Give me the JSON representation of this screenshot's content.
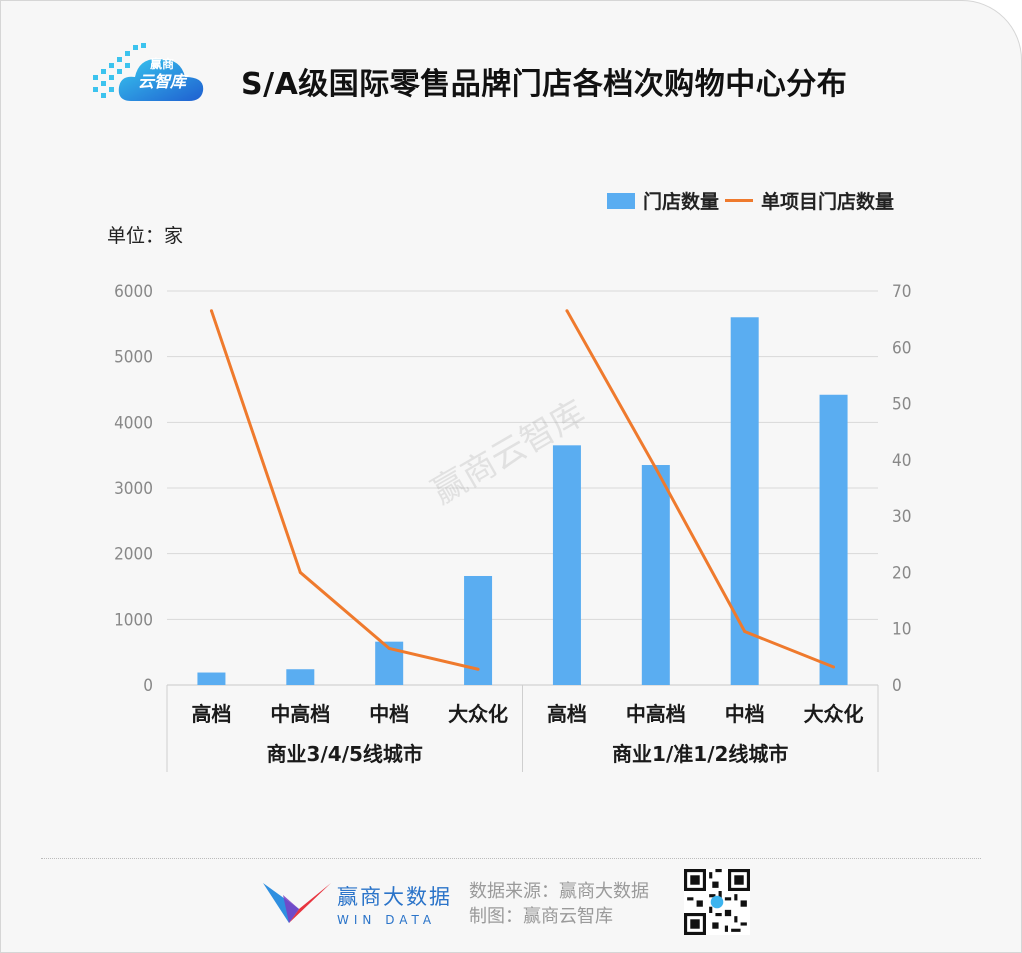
{
  "title": "S/A级国际零售品牌门店各档次购物中心分布",
  "logo": {
    "line1": "赢商",
    "line2": "云智库"
  },
  "unit_label": "单位：家",
  "watermark": "赢商云智库",
  "footer": {
    "brand_name": "赢商大数据",
    "brand_sub": "WIN DATA",
    "source_line": "数据来源：赢商大数据",
    "made_by_line": "制图：赢商云智库"
  },
  "colors": {
    "bar": "#5aadf1",
    "line": "#ef7a2d",
    "accent": "#2b74c9"
  },
  "chart_data": {
    "type": "bar",
    "categories": [
      "高档",
      "中高档",
      "中档",
      "大众化",
      "高档",
      "中高档",
      "中档",
      "大众化"
    ],
    "groups": [
      {
        "label": "商业3/4/5线城市",
        "span": 4
      },
      {
        "label": "商业1/准1/2线城市",
        "span": 4
      }
    ],
    "series": [
      {
        "name": "门店数量",
        "type": "bar",
        "axis": "left",
        "values": [
          190,
          240,
          660,
          1660,
          3650,
          3350,
          5600,
          4420
        ]
      },
      {
        "name": "单项目门店数量",
        "type": "line",
        "axis": "right",
        "values": [
          66.5,
          20,
          6.5,
          2.8,
          66.5,
          38.5,
          9.5,
          3.2
        ]
      }
    ],
    "y_left": {
      "min": 0,
      "max": 6000,
      "ticks": [
        0,
        1000,
        2000,
        3000,
        4000,
        5000,
        6000
      ]
    },
    "y_right": {
      "min": 0,
      "max": 70,
      "ticks": [
        0,
        10,
        20,
        30,
        40,
        50,
        60,
        70
      ]
    },
    "grid": true,
    "legend": "top-right"
  }
}
